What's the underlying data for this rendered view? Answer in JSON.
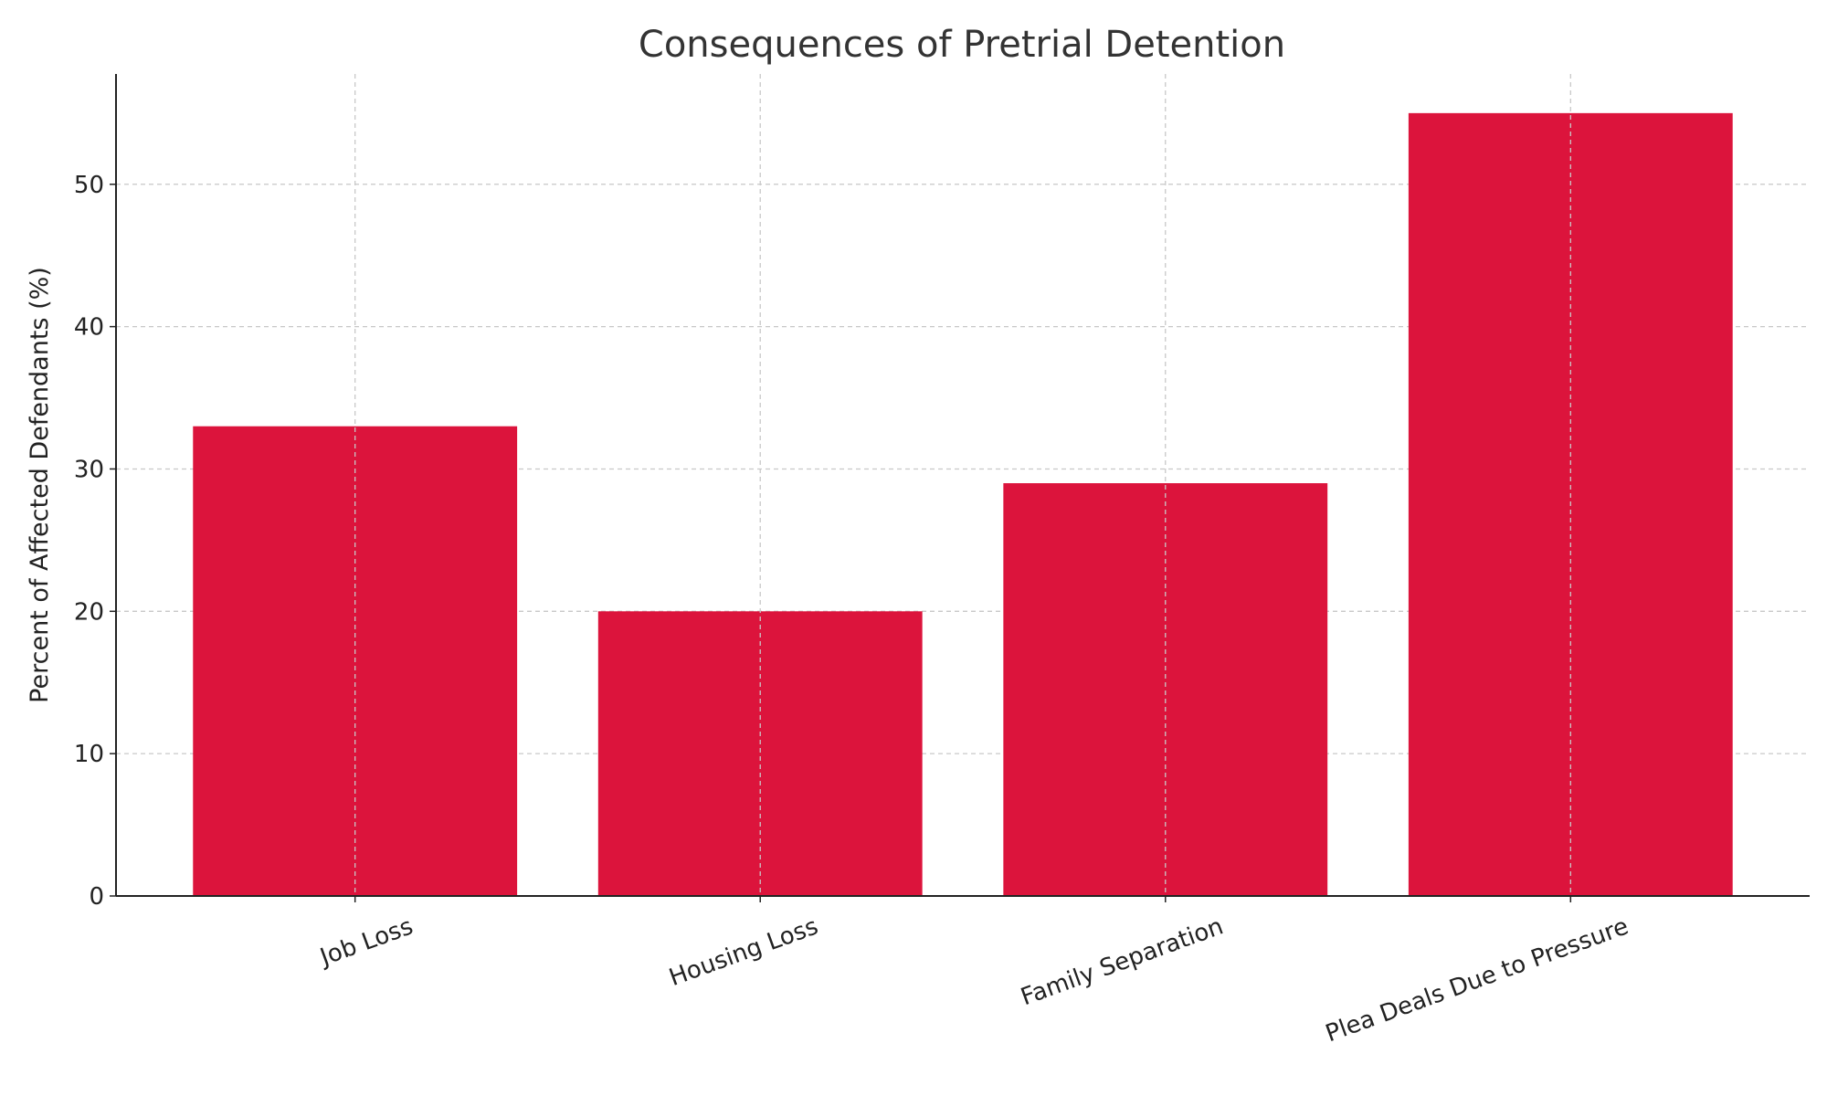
{
  "chart_data": {
    "type": "bar",
    "title": "Consequences of Pretrial Detention",
    "xlabel": "",
    "ylabel": "Percent of Affected Defendants (%)",
    "categories": [
      "Job Loss",
      "Housing Loss",
      "Family Separation",
      "Plea Deals Due to Pressure"
    ],
    "values": [
      33,
      20,
      29,
      55
    ],
    "ylim": [
      0,
      57.75
    ],
    "yticks": [
      0,
      10,
      20,
      30,
      40,
      50
    ],
    "grid": true,
    "bar_color": "#DC143C",
    "xtick_rotation": 20
  }
}
